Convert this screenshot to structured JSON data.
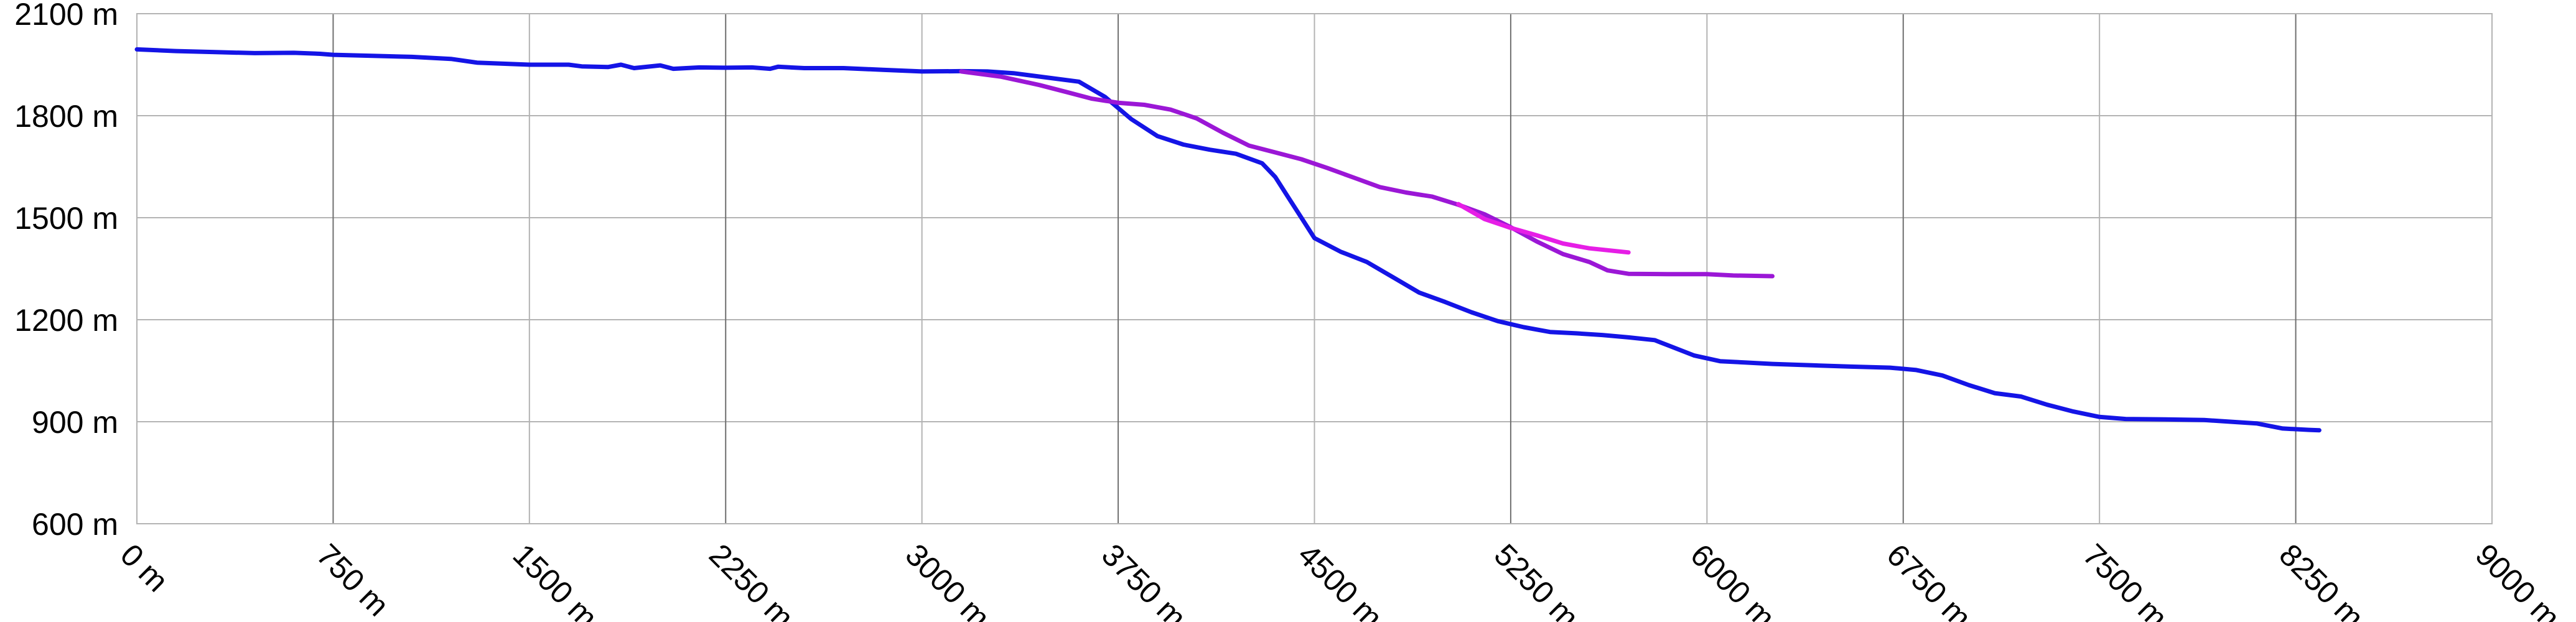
{
  "chart_data": {
    "type": "line",
    "title": "",
    "xlabel": "",
    "ylabel": "",
    "xlim": [
      0,
      9000
    ],
    "ylim": [
      600,
      2100
    ],
    "x_ticks": [
      0,
      750,
      1500,
      2250,
      3000,
      3750,
      4500,
      5250,
      6000,
      6750,
      7500,
      8250,
      9000
    ],
    "x_tick_labels": [
      "0 m",
      "750 m",
      "1500 m",
      "2250 m",
      "3000 m",
      "3750 m",
      "4500 m",
      "5250 m",
      "6000 m",
      "6750 m",
      "7500 m",
      "8250 m",
      "9000 m"
    ],
    "y_ticks": [
      600,
      900,
      1200,
      1500,
      1800,
      2100
    ],
    "y_tick_labels": [
      "600 m",
      "900 m",
      "1200 m",
      "1500 m",
      "1800 m",
      "2100 m"
    ],
    "grid": true,
    "legend": "none",
    "series": [
      {
        "color": "#1414e6",
        "points": [
          [
            0,
            1995
          ],
          [
            150,
            1990
          ],
          [
            300,
            1987
          ],
          [
            450,
            1984
          ],
          [
            600,
            1985
          ],
          [
            700,
            1982
          ],
          [
            750,
            1979
          ],
          [
            900,
            1976
          ],
          [
            1050,
            1973
          ],
          [
            1200,
            1967
          ],
          [
            1300,
            1956
          ],
          [
            1500,
            1950
          ],
          [
            1650,
            1950
          ],
          [
            1700,
            1945
          ],
          [
            1800,
            1943
          ],
          [
            1850,
            1950
          ],
          [
            1900,
            1940
          ],
          [
            2000,
            1948
          ],
          [
            2050,
            1938
          ],
          [
            2150,
            1942
          ],
          [
            2250,
            1941
          ],
          [
            2350,
            1942
          ],
          [
            2420,
            1938
          ],
          [
            2450,
            1944
          ],
          [
            2550,
            1940
          ],
          [
            2700,
            1940
          ],
          [
            2850,
            1935
          ],
          [
            3000,
            1930
          ],
          [
            3150,
            1931
          ],
          [
            3250,
            1930
          ],
          [
            3350,
            1925
          ],
          [
            3500,
            1910
          ],
          [
            3600,
            1900
          ],
          [
            3700,
            1855
          ],
          [
            3800,
            1790
          ],
          [
            3900,
            1740
          ],
          [
            4000,
            1715
          ],
          [
            4100,
            1700
          ],
          [
            4200,
            1688
          ],
          [
            4300,
            1660
          ],
          [
            4350,
            1620
          ],
          [
            4400,
            1560
          ],
          [
            4450,
            1500
          ],
          [
            4500,
            1440
          ],
          [
            4600,
            1400
          ],
          [
            4700,
            1370
          ],
          [
            4800,
            1325
          ],
          [
            4900,
            1280
          ],
          [
            5000,
            1252
          ],
          [
            5100,
            1222
          ],
          [
            5200,
            1196
          ],
          [
            5300,
            1178
          ],
          [
            5400,
            1164
          ],
          [
            5500,
            1160
          ],
          [
            5600,
            1155
          ],
          [
            5700,
            1148
          ],
          [
            5800,
            1140
          ],
          [
            5850,
            1125
          ],
          [
            5950,
            1095
          ],
          [
            6050,
            1078
          ],
          [
            6150,
            1074
          ],
          [
            6250,
            1070
          ],
          [
            6400,
            1066
          ],
          [
            6550,
            1062
          ],
          [
            6700,
            1059
          ],
          [
            6800,
            1052
          ],
          [
            6900,
            1036
          ],
          [
            7000,
            1008
          ],
          [
            7100,
            984
          ],
          [
            7200,
            974
          ],
          [
            7300,
            950
          ],
          [
            7400,
            930
          ],
          [
            7500,
            914
          ],
          [
            7600,
            908
          ],
          [
            7750,
            907
          ],
          [
            7900,
            905
          ],
          [
            8000,
            900
          ],
          [
            8100,
            895
          ],
          [
            8200,
            880
          ],
          [
            8300,
            876
          ],
          [
            8340,
            875
          ]
        ]
      },
      {
        "color": "#9b17d6",
        "points": [
          [
            3150,
            1930
          ],
          [
            3300,
            1915
          ],
          [
            3450,
            1890
          ],
          [
            3550,
            1870
          ],
          [
            3650,
            1850
          ],
          [
            3750,
            1838
          ],
          [
            3850,
            1832
          ],
          [
            3950,
            1818
          ],
          [
            4050,
            1792
          ],
          [
            4150,
            1750
          ],
          [
            4250,
            1712
          ],
          [
            4350,
            1692
          ],
          [
            4450,
            1672
          ],
          [
            4550,
            1646
          ],
          [
            4650,
            1618
          ],
          [
            4750,
            1590
          ],
          [
            4850,
            1574
          ],
          [
            4950,
            1562
          ],
          [
            5050,
            1538
          ],
          [
            5150,
            1510
          ],
          [
            5250,
            1472
          ],
          [
            5350,
            1430
          ],
          [
            5450,
            1393
          ],
          [
            5550,
            1370
          ],
          [
            5620,
            1345
          ],
          [
            5700,
            1335
          ],
          [
            5850,
            1334
          ],
          [
            6000,
            1334
          ],
          [
            6100,
            1330
          ],
          [
            6250,
            1328
          ]
        ]
      },
      {
        "color": "#e61ee6",
        "points": [
          [
            5050,
            1540
          ],
          [
            5150,
            1496
          ],
          [
            5250,
            1470
          ],
          [
            5350,
            1448
          ],
          [
            5450,
            1424
          ],
          [
            5550,
            1410
          ],
          [
            5700,
            1398
          ]
        ]
      }
    ]
  }
}
